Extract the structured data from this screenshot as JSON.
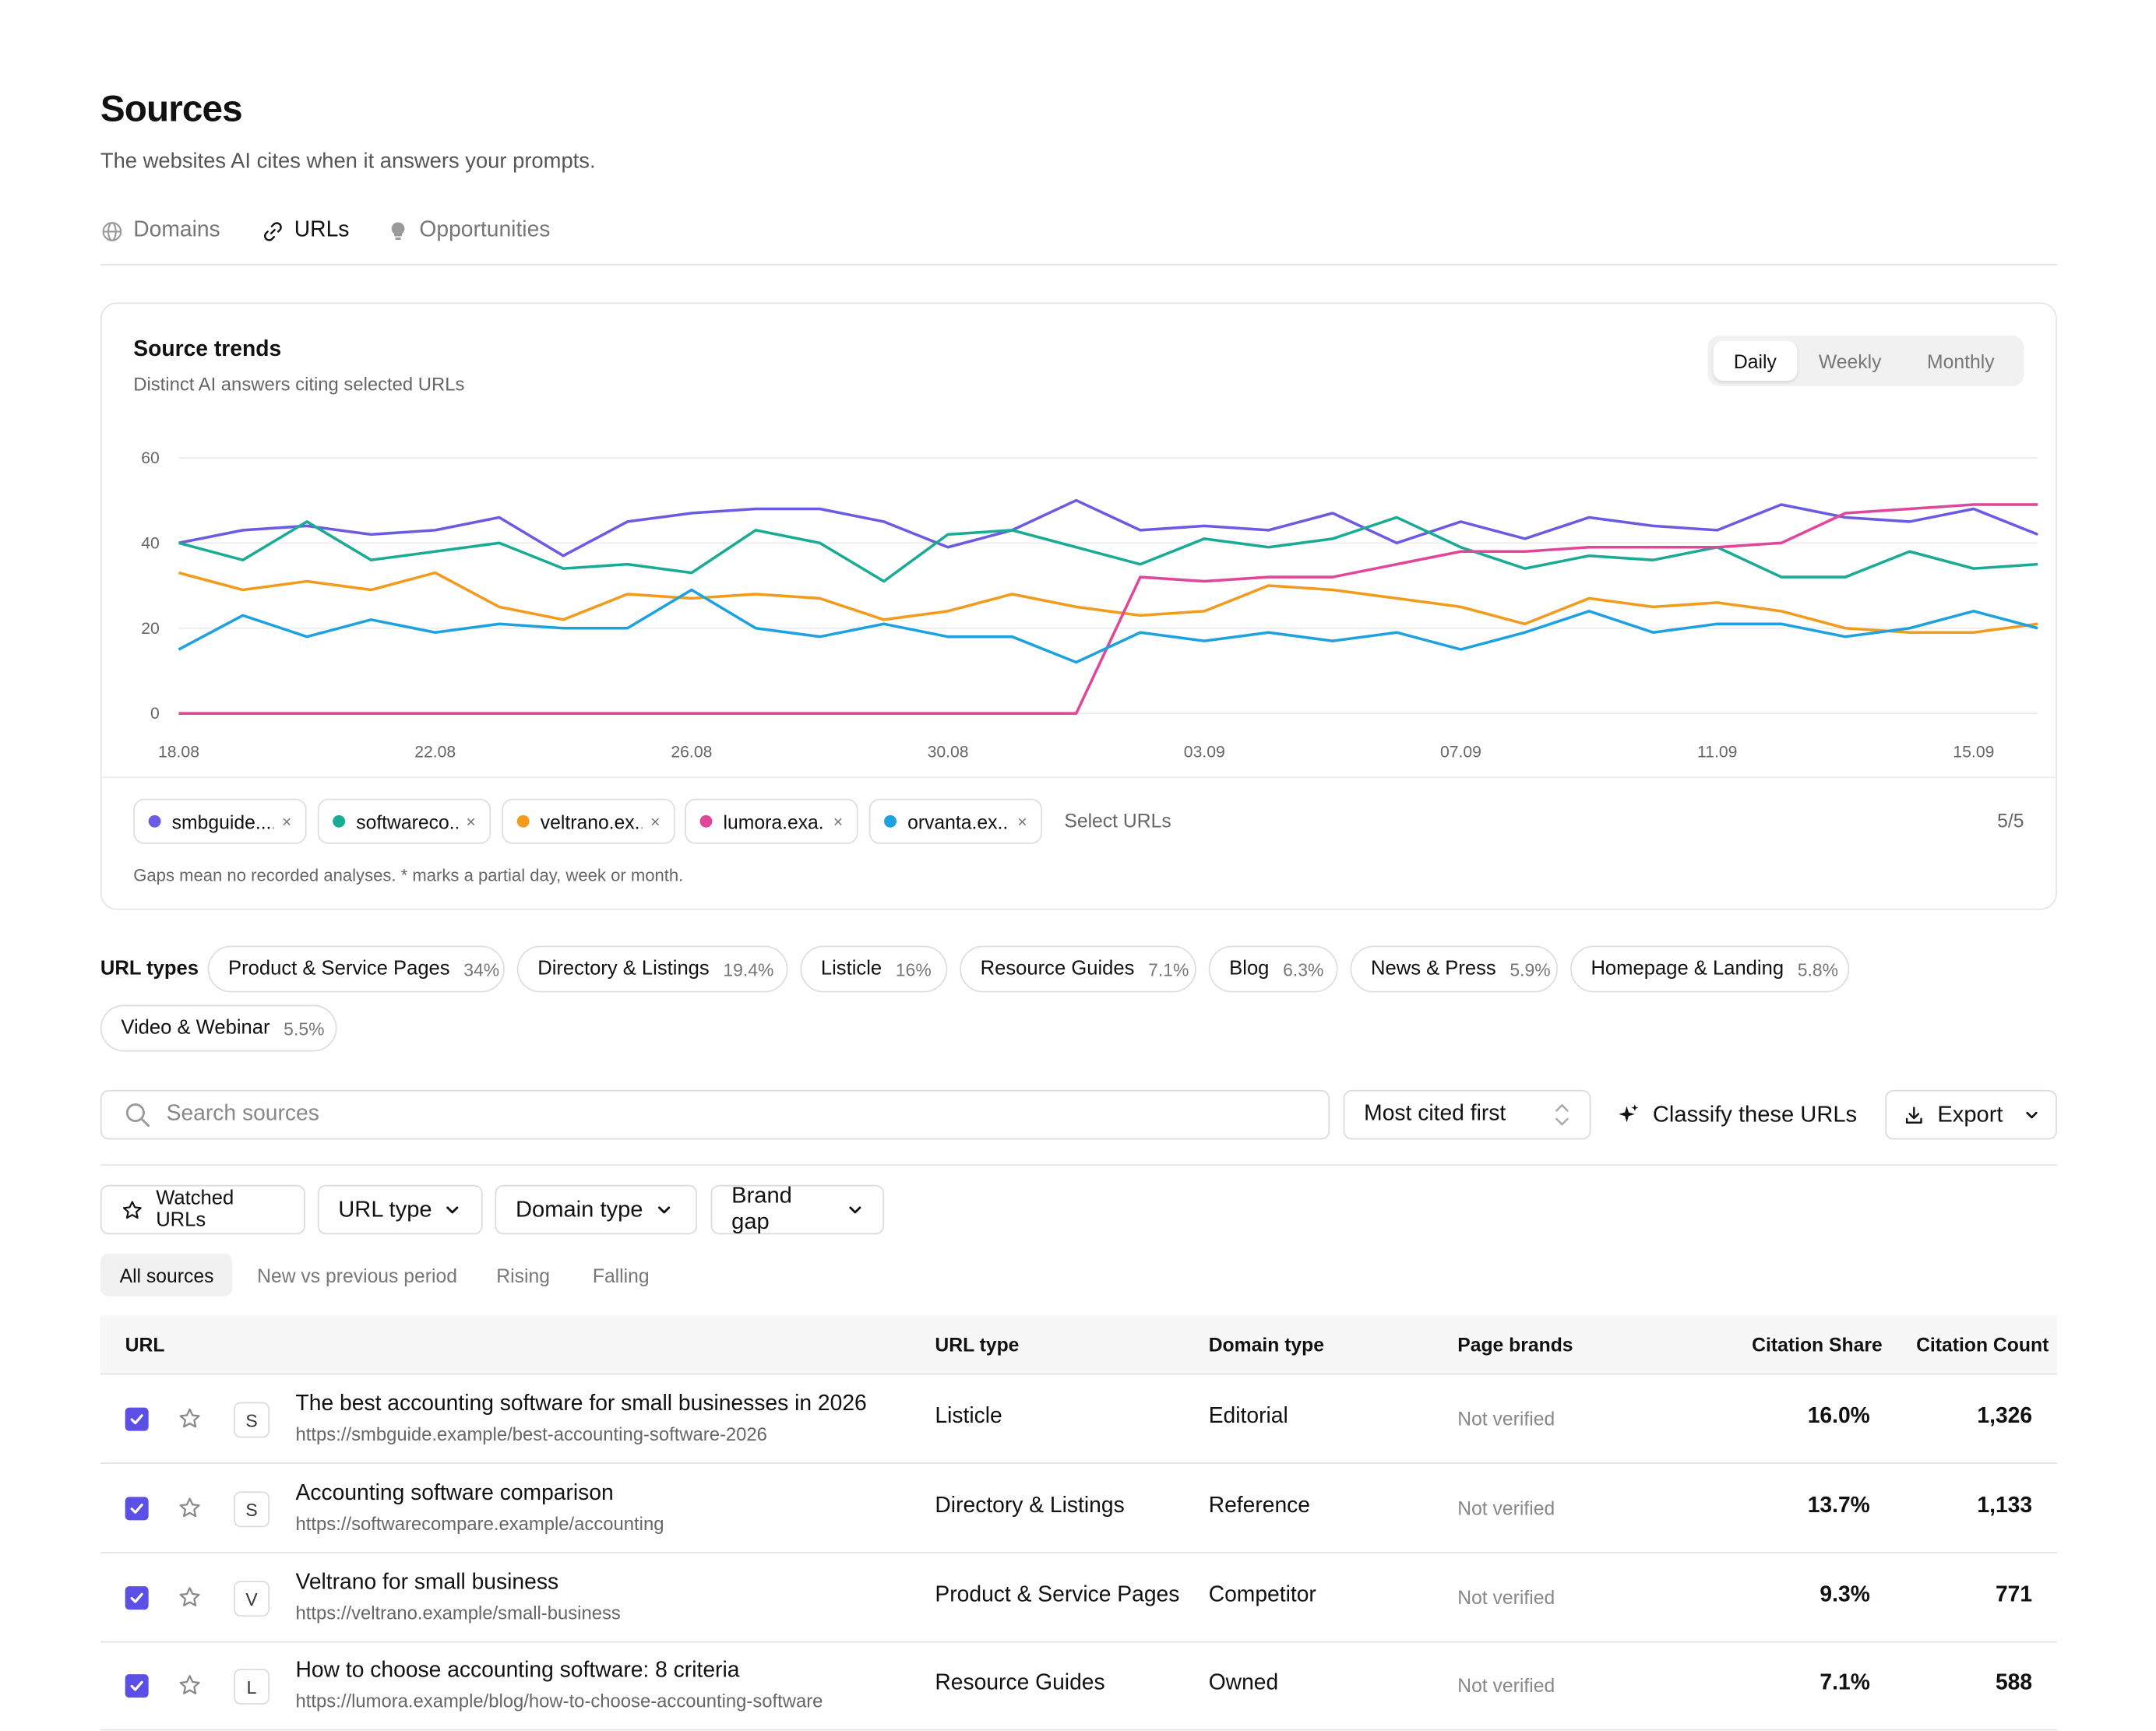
{
  "page": {
    "title": "Sources",
    "subtitle": "The websites AI cites when it answers your prompts."
  },
  "tabs": [
    {
      "label": "Domains",
      "icon": "globe-icon",
      "active": false
    },
    {
      "label": "URLs",
      "icon": "link-icon",
      "active": true
    },
    {
      "label": "Opportunities",
      "icon": "lightbulb-icon",
      "active": false
    }
  ],
  "trends": {
    "title": "Source trends",
    "subtitle": "Distinct AI answers citing selected URLs",
    "granularity": [
      "Daily",
      "Weekly",
      "Monthly"
    ],
    "selected_granularity": "Daily",
    "select_placeholder": "Select URLs",
    "selected_count": "5/5",
    "footnote": "Gaps mean no recorded analyses. * marks a partial day, week or month.",
    "chips": [
      {
        "label": "smbguide....",
        "color": "#6a5be2"
      },
      {
        "label": "softwareco...",
        "color": "#1aab95"
      },
      {
        "label": "veltrano.ex...",
        "color": "#f29b1c"
      },
      {
        "label": "lumora.exa...",
        "color": "#e0469a"
      },
      {
        "label": "orvanta.ex...",
        "color": "#1ea1e0"
      }
    ]
  },
  "chart_data": {
    "type": "line",
    "title": "Source trends",
    "xlabel": "",
    "ylabel": "",
    "ylim": [
      0,
      60
    ],
    "yticks": [
      "0",
      "20",
      "40",
      "60"
    ],
    "xticks": [
      "18.08",
      "22.08",
      "26.08",
      "30.08",
      "03.09",
      "07.09",
      "11.09",
      "15.09"
    ],
    "x": [
      "18.08",
      "19.08",
      "20.08",
      "21.08",
      "22.08",
      "23.08",
      "24.08",
      "25.08",
      "26.08",
      "27.08",
      "28.08",
      "29.08",
      "30.08",
      "31.08",
      "01.09",
      "02.09",
      "03.09",
      "04.09",
      "05.09",
      "06.09",
      "07.09",
      "08.09",
      "09.09",
      "10.09",
      "11.09",
      "12.09",
      "13.09",
      "14.09",
      "15.09",
      "16.09"
    ],
    "grid": true,
    "series": [
      {
        "key": "smbguide",
        "color": "#6a5be2",
        "values": [
          40,
          43,
          44,
          42,
          43,
          46,
          37,
          45,
          47,
          48,
          48,
          45,
          39,
          43,
          50,
          43,
          44,
          43,
          47,
          40,
          45,
          41,
          46,
          44,
          43,
          49,
          46,
          45,
          48,
          42
        ]
      },
      {
        "key": "softwarecompare",
        "color": "#1aab95",
        "values": [
          40,
          36,
          45,
          36,
          38,
          40,
          34,
          35,
          33,
          43,
          40,
          31,
          42,
          43,
          39,
          35,
          41,
          39,
          41,
          46,
          39,
          34,
          37,
          36,
          39,
          32,
          32,
          38,
          34,
          35
        ]
      },
      {
        "key": "veltrano",
        "color": "#f29b1c",
        "values": [
          33,
          29,
          31,
          29,
          33,
          25,
          22,
          28,
          27,
          28,
          27,
          22,
          24,
          28,
          25,
          23,
          24,
          30,
          29,
          27,
          25,
          21,
          27,
          25,
          26,
          24,
          20,
          19,
          19,
          21
        ]
      },
      {
        "key": "lumora",
        "color": "#e0469a",
        "values": [
          0,
          0,
          0,
          0,
          0,
          0,
          0,
          0,
          0,
          0,
          0,
          0,
          0,
          0,
          0,
          32,
          31,
          32,
          32,
          35,
          38,
          38,
          39,
          39,
          39,
          40,
          47,
          48,
          49,
          49
        ]
      },
      {
        "key": "orvanta",
        "color": "#1ea1e0",
        "values": [
          15,
          23,
          18,
          22,
          19,
          21,
          20,
          20,
          29,
          20,
          18,
          21,
          18,
          18,
          12,
          19,
          17,
          19,
          17,
          19,
          15,
          19,
          24,
          19,
          21,
          21,
          18,
          20,
          24,
          20
        ]
      }
    ]
  },
  "url_types": {
    "label": "URL types",
    "items": [
      {
        "name": "Product & Service Pages",
        "pct": "34%"
      },
      {
        "name": "Directory & Listings",
        "pct": "19.4%"
      },
      {
        "name": "Listicle",
        "pct": "16%"
      },
      {
        "name": "Resource Guides",
        "pct": "7.1%"
      },
      {
        "name": "Blog",
        "pct": "6.3%"
      },
      {
        "name": "News & Press",
        "pct": "5.9%"
      },
      {
        "name": "Homepage & Landing",
        "pct": "5.8%"
      },
      {
        "name": "Video & Webinar",
        "pct": "5.5%"
      }
    ]
  },
  "toolbar": {
    "search_placeholder": "Search sources",
    "sort_label": "Most cited first",
    "classify_label": "Classify these URLs",
    "export_label": "Export"
  },
  "filters": {
    "watched": "Watched URLs",
    "url_type": "URL type",
    "domain_type": "Domain type",
    "brand_gap": "Brand gap"
  },
  "views": [
    "All sources",
    "New vs previous period",
    "Rising",
    "Falling"
  ],
  "table": {
    "columns": {
      "url": "URL",
      "url_type": "URL type",
      "domain_type": "Domain type",
      "page_brands": "Page brands",
      "citation_share": "Citation Share",
      "citation_count": "Citation Count"
    },
    "rows": [
      {
        "initial": "S",
        "title": "The best accounting software for small businesses in 2026",
        "url": "https://smbguide.example/best-accounting-software-2026",
        "url_type": "Listicle",
        "domain_type": "Editorial",
        "page_brands": "Not verified",
        "share": "16.0%",
        "count": "1,326",
        "checked": true
      },
      {
        "initial": "S",
        "title": "Accounting software comparison",
        "url": "https://softwarecompare.example/accounting",
        "url_type": "Directory & Listings",
        "domain_type": "Reference",
        "page_brands": "Not verified",
        "share": "13.7%",
        "count": "1,133",
        "checked": true
      },
      {
        "initial": "V",
        "title": "Veltrano for small business",
        "url": "https://veltrano.example/small-business",
        "url_type": "Product & Service Pages",
        "domain_type": "Competitor",
        "page_brands": "Not verified",
        "share": "9.3%",
        "count": "771",
        "checked": true
      },
      {
        "initial": "L",
        "title": "How to choose accounting software: 8 criteria",
        "url": "https://lumora.example/blog/how-to-choose-accounting-software",
        "url_type": "Resource Guides",
        "domain_type": "Owned",
        "page_brands": "Not verified",
        "share": "7.1%",
        "count": "588",
        "checked": true
      }
    ]
  }
}
